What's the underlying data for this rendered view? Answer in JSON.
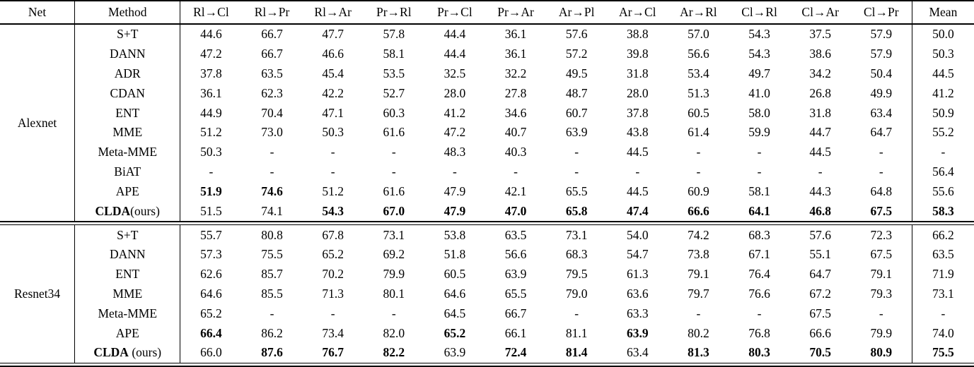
{
  "colors": {
    "text": "#000000",
    "background": "#ffffff",
    "rule": "#000000"
  },
  "table": {
    "headers": [
      "Net",
      "Method",
      "Rl→Cl",
      "Rl→Pr",
      "Rl→Ar",
      "Pr→Rl",
      "Pr→Cl",
      "Pr→Ar",
      "Ar→Pl",
      "Ar→Cl",
      "Ar→Rl",
      "Cl→Rl",
      "Cl→Ar",
      "Cl→Pr",
      "Mean"
    ],
    "groups": [
      {
        "net": "Alexnet",
        "rows": [
          {
            "method": "S+T",
            "suffix": "",
            "method_bold": false,
            "values": [
              "44.6",
              "66.7",
              "47.7",
              "57.8",
              "44.4",
              "36.1",
              "57.6",
              "38.8",
              "57.0",
              "54.3",
              "37.5",
              "57.9",
              "50.0"
            ],
            "bold": [
              0,
              0,
              0,
              0,
              0,
              0,
              0,
              0,
              0,
              0,
              0,
              0,
              0
            ]
          },
          {
            "method": "DANN",
            "suffix": "",
            "method_bold": false,
            "values": [
              "47.2",
              "66.7",
              "46.6",
              "58.1",
              "44.4",
              "36.1",
              "57.2",
              "39.8",
              "56.6",
              "54.3",
              "38.6",
              "57.9",
              "50.3"
            ],
            "bold": [
              0,
              0,
              0,
              0,
              0,
              0,
              0,
              0,
              0,
              0,
              0,
              0,
              0
            ]
          },
          {
            "method": "ADR",
            "suffix": "",
            "method_bold": false,
            "values": [
              "37.8",
              "63.5",
              "45.4",
              "53.5",
              "32.5",
              "32.2",
              "49.5",
              "31.8",
              "53.4",
              "49.7",
              "34.2",
              "50.4",
              "44.5"
            ],
            "bold": [
              0,
              0,
              0,
              0,
              0,
              0,
              0,
              0,
              0,
              0,
              0,
              0,
              0
            ]
          },
          {
            "method": "CDAN",
            "suffix": "",
            "method_bold": false,
            "values": [
              "36.1",
              "62.3",
              "42.2",
              "52.7",
              "28.0",
              "27.8",
              "48.7",
              "28.0",
              "51.3",
              "41.0",
              "26.8",
              "49.9",
              "41.2"
            ],
            "bold": [
              0,
              0,
              0,
              0,
              0,
              0,
              0,
              0,
              0,
              0,
              0,
              0,
              0
            ]
          },
          {
            "method": "ENT",
            "suffix": "",
            "method_bold": false,
            "values": [
              "44.9",
              "70.4",
              "47.1",
              "60.3",
              "41.2",
              "34.6",
              "60.7",
              "37.8",
              "60.5",
              "58.0",
              "31.8",
              "63.4",
              "50.9"
            ],
            "bold": [
              0,
              0,
              0,
              0,
              0,
              0,
              0,
              0,
              0,
              0,
              0,
              0,
              0
            ]
          },
          {
            "method": "MME",
            "suffix": "",
            "method_bold": false,
            "values": [
              "51.2",
              "73.0",
              "50.3",
              "61.6",
              "47.2",
              "40.7",
              "63.9",
              "43.8",
              "61.4",
              "59.9",
              "44.7",
              "64.7",
              "55.2"
            ],
            "bold": [
              0,
              0,
              0,
              0,
              0,
              0,
              0,
              0,
              0,
              0,
              0,
              0,
              0
            ]
          },
          {
            "method": "Meta-MME",
            "suffix": "",
            "method_bold": false,
            "values": [
              "50.3",
              "-",
              "-",
              "-",
              "48.3",
              "40.3",
              "-",
              "44.5",
              "-",
              "-",
              "44.5",
              "-",
              "-"
            ],
            "bold": [
              0,
              0,
              0,
              0,
              0,
              0,
              0,
              0,
              0,
              0,
              0,
              0,
              0
            ]
          },
          {
            "method": "BiAT",
            "suffix": "",
            "method_bold": false,
            "values": [
              "-",
              "-",
              "-",
              "-",
              "-",
              "-",
              "-",
              "-",
              "-",
              "-",
              "-",
              "-",
              "56.4"
            ],
            "bold": [
              0,
              0,
              0,
              0,
              0,
              0,
              0,
              0,
              0,
              0,
              0,
              0,
              0
            ]
          },
          {
            "method": "APE",
            "suffix": "",
            "method_bold": false,
            "values": [
              "51.9",
              "74.6",
              "51.2",
              "61.6",
              "47.9",
              "42.1",
              "65.5",
              "44.5",
              "60.9",
              "58.1",
              "44.3",
              "64.8",
              "55.6"
            ],
            "bold": [
              1,
              1,
              0,
              0,
              0,
              0,
              0,
              0,
              0,
              0,
              0,
              0,
              0
            ]
          },
          {
            "method": "CLDA",
            "suffix": "(ours)",
            "method_bold": true,
            "values": [
              "51.5",
              "74.1",
              "54.3",
              "67.0",
              "47.9",
              "47.0",
              "65.8",
              "47.4",
              "66.6",
              "64.1",
              "46.8",
              "67.5",
              "58.3"
            ],
            "bold": [
              0,
              0,
              1,
              1,
              1,
              1,
              1,
              1,
              1,
              1,
              1,
              1,
              1
            ]
          }
        ]
      },
      {
        "net": "Resnet34",
        "rows": [
          {
            "method": "S+T",
            "suffix": "",
            "method_bold": false,
            "values": [
              "55.7",
              "80.8",
              "67.8",
              "73.1",
              "53.8",
              "63.5",
              "73.1",
              "54.0",
              "74.2",
              "68.3",
              "57.6",
              "72.3",
              "66.2"
            ],
            "bold": [
              0,
              0,
              0,
              0,
              0,
              0,
              0,
              0,
              0,
              0,
              0,
              0,
              0
            ]
          },
          {
            "method": "DANN",
            "suffix": "",
            "method_bold": false,
            "values": [
              "57.3",
              "75.5",
              "65.2",
              "69.2",
              "51.8",
              "56.6",
              "68.3",
              "54.7",
              "73.8",
              "67.1",
              "55.1",
              "67.5",
              "63.5"
            ],
            "bold": [
              0,
              0,
              0,
              0,
              0,
              0,
              0,
              0,
              0,
              0,
              0,
              0,
              0
            ]
          },
          {
            "method": "ENT",
            "suffix": "",
            "method_bold": false,
            "values": [
              "62.6",
              "85.7",
              "70.2",
              "79.9",
              "60.5",
              "63.9",
              "79.5",
              "61.3",
              "79.1",
              "76.4",
              "64.7",
              "79.1",
              "71.9"
            ],
            "bold": [
              0,
              0,
              0,
              0,
              0,
              0,
              0,
              0,
              0,
              0,
              0,
              0,
              0
            ]
          },
          {
            "method": "MME",
            "suffix": "",
            "method_bold": false,
            "values": [
              "64.6",
              "85.5",
              "71.3",
              "80.1",
              "64.6",
              "65.5",
              "79.0",
              "63.6",
              "79.7",
              "76.6",
              "67.2",
              "79.3",
              "73.1"
            ],
            "bold": [
              0,
              0,
              0,
              0,
              0,
              0,
              0,
              0,
              0,
              0,
              0,
              0,
              0
            ]
          },
          {
            "method": "Meta-MME",
            "suffix": "",
            "method_bold": false,
            "values": [
              "65.2",
              "-",
              "-",
              "-",
              "64.5",
              "66.7",
              "-",
              "63.3",
              "-",
              "-",
              "67.5",
              "-",
              "-"
            ],
            "bold": [
              0,
              0,
              0,
              0,
              0,
              0,
              0,
              0,
              0,
              0,
              0,
              0,
              0
            ]
          },
          {
            "method": "APE",
            "suffix": "",
            "method_bold": false,
            "values": [
              "66.4",
              "86.2",
              "73.4",
              "82.0",
              "65.2",
              "66.1",
              "81.1",
              "63.9",
              "80.2",
              "76.8",
              "66.6",
              "79.9",
              "74.0"
            ],
            "bold": [
              1,
              0,
              0,
              0,
              1,
              0,
              0,
              1,
              0,
              0,
              0,
              0,
              0
            ]
          },
          {
            "method": "CLDA",
            "suffix": " (ours)",
            "method_bold": true,
            "values": [
              "66.0",
              "87.6",
              "76.7",
              "82.2",
              "63.9",
              "72.4",
              "81.4",
              "63.4",
              "81.3",
              "80.3",
              "70.5",
              "80.9",
              "75.5"
            ],
            "bold": [
              0,
              1,
              1,
              1,
              0,
              1,
              1,
              0,
              1,
              1,
              1,
              1,
              1
            ]
          }
        ]
      }
    ]
  }
}
